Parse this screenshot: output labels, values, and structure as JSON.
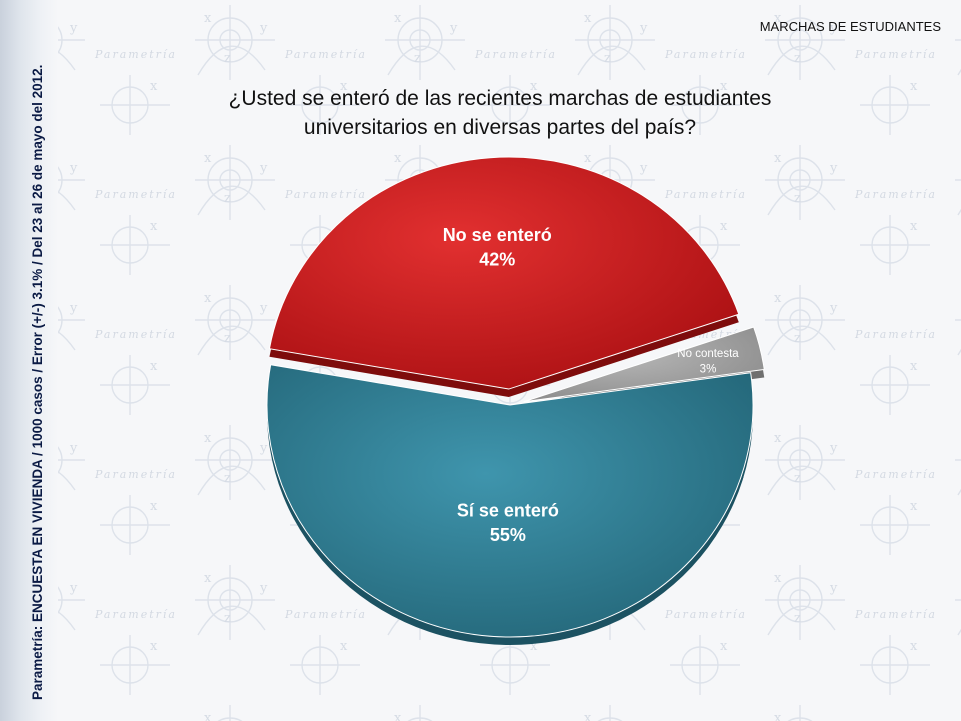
{
  "header": {
    "section_title": "MARCHAS DE ESTUDIANTES",
    "side_note": "Parametría: ENCUESTA EN VIVIENDA / 1000 casos / Error (+/-) 3.1% / Del 23 al 26 de mayo del 2012."
  },
  "watermark": {
    "text": "Parametría"
  },
  "chart_data": {
    "type": "pie",
    "title": "¿Usted se enteró de las recientes marchas de estudiantes universitarios en diversas partes del país?",
    "title_lines": [
      "¿Usted se enteró de las recientes marchas de estudiantes",
      "universitarios en diversas partes del país?"
    ],
    "slices": [
      {
        "label": "No se enteró",
        "value": 42,
        "value_label": "42%",
        "color": "#c21a1a"
      },
      {
        "label": "No contesta",
        "value": 3,
        "value_label": "3%",
        "color": "#9a9a9a"
      },
      {
        "label": "Sí se enteró",
        "value": 55,
        "value_label": "55%",
        "color": "#2d7a91"
      }
    ]
  }
}
